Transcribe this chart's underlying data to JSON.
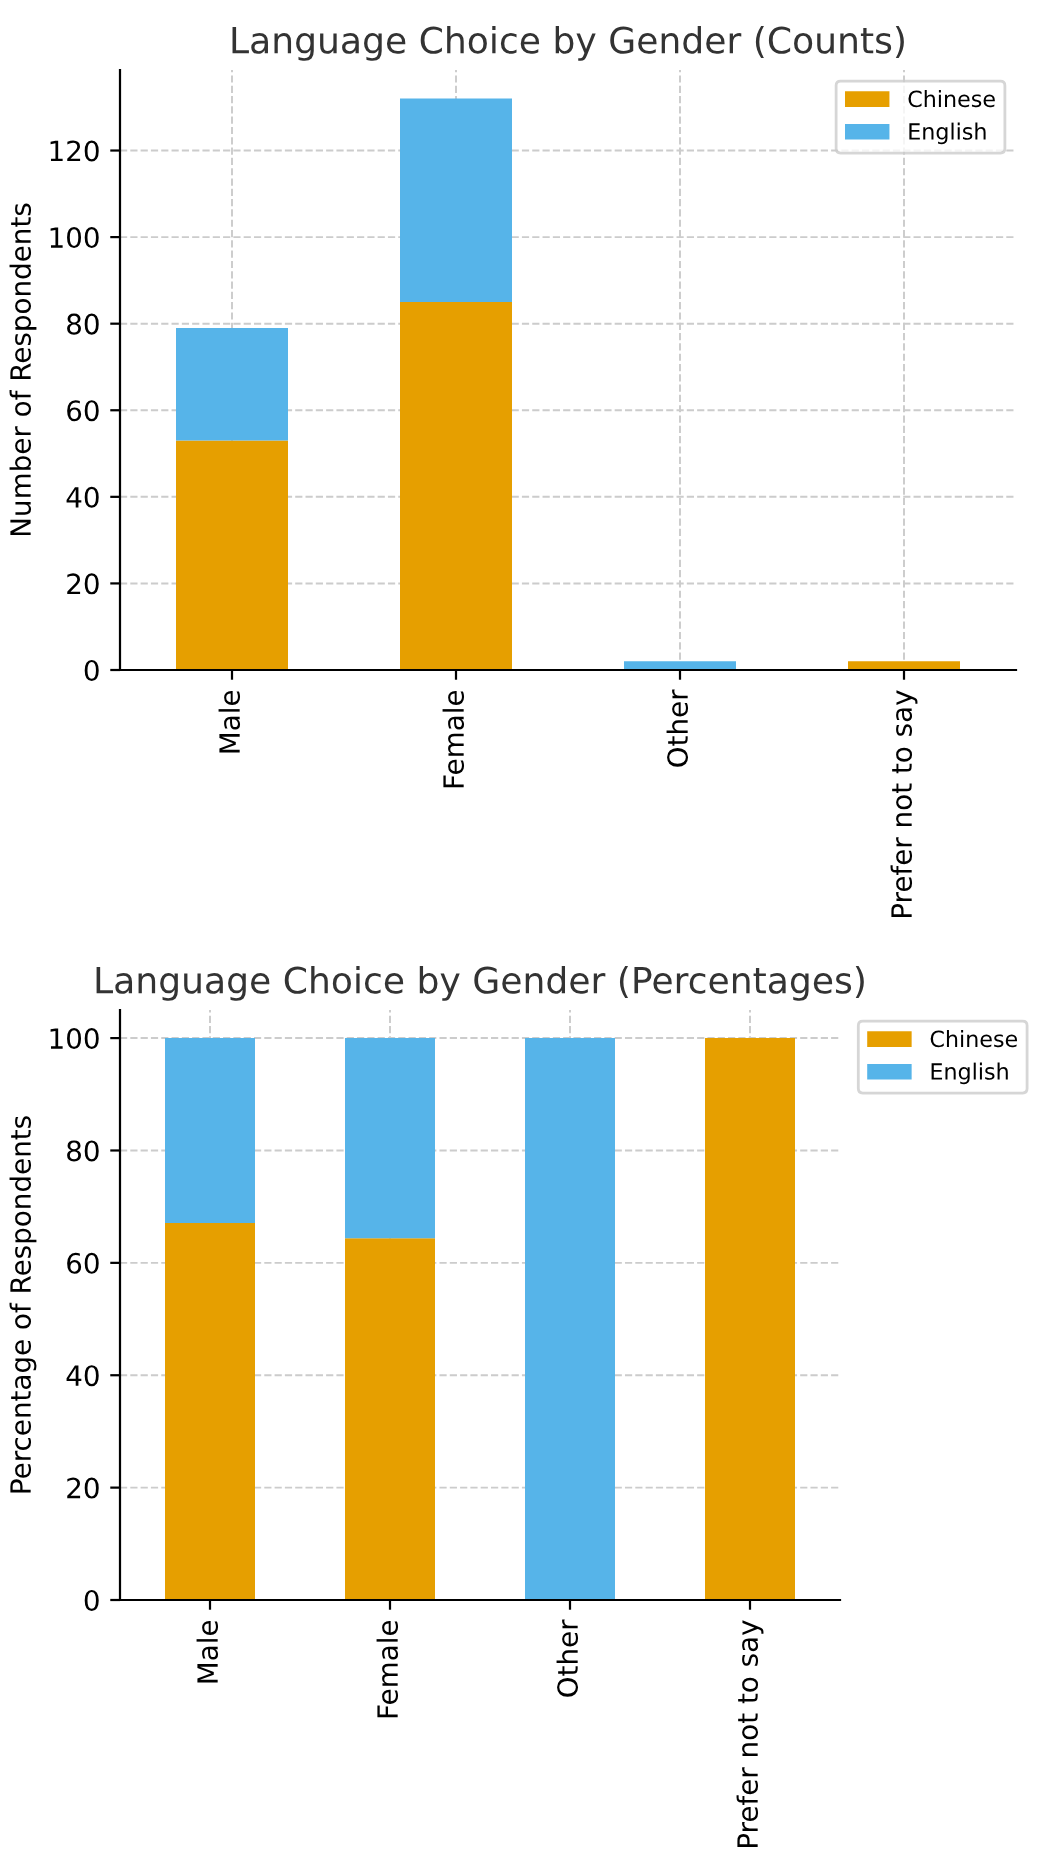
{
  "chart_data": [
    {
      "type": "bar",
      "stacked": true,
      "title": "Language Choice by Gender (Counts)",
      "ylabel": "Number of Respondents",
      "categories": [
        "Male",
        "Female",
        "Other",
        "Prefer not to say"
      ],
      "series": [
        {
          "name": "Chinese",
          "color": "#e69f00",
          "values": [
            53,
            85,
            0,
            2
          ]
        },
        {
          "name": "English",
          "color": "#56b4e9",
          "values": [
            26,
            47,
            2,
            0
          ]
        }
      ],
      "ylim": [
        0,
        138.6
      ],
      "yticks": [
        0,
        20,
        40,
        60,
        80,
        100,
        120
      ],
      "grid": true,
      "legend": "top right"
    },
    {
      "type": "bar",
      "stacked": true,
      "title": "Language Choice by Gender (Percentages)",
      "ylabel": "Percentage of Respondents",
      "categories": [
        "Male",
        "Female",
        "Other",
        "Prefer not to say"
      ],
      "series": [
        {
          "name": "Chinese",
          "color": "#e69f00",
          "values": [
            67.1,
            64.4,
            0,
            100
          ]
        },
        {
          "name": "English",
          "color": "#56b4e9",
          "values": [
            32.9,
            35.6,
            100,
            0
          ]
        }
      ],
      "ylim": [
        0,
        105
      ],
      "yticks": [
        0,
        20,
        40,
        60,
        80,
        100
      ],
      "grid": true,
      "legend": "right"
    }
  ]
}
